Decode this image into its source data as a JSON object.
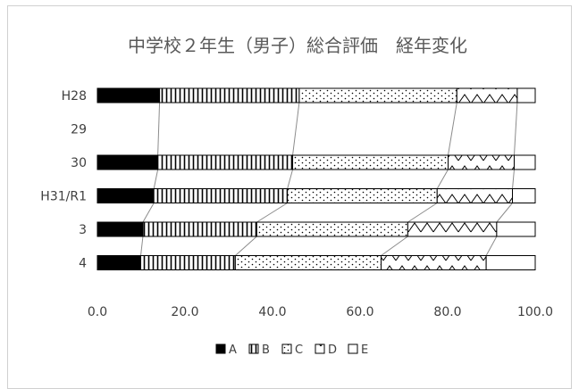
{
  "chart_data": {
    "type": "bar",
    "orientation": "horizontal",
    "stacked": true,
    "title": "中学校２年生（男子）総合評価　経年変化",
    "categories": [
      "H28",
      "29",
      "30",
      "H31/R1",
      "3",
      "4"
    ],
    "x_ticks": [
      "0.0",
      "20.0",
      "40.0",
      "60.0",
      "80.0",
      "100.0"
    ],
    "xlim": [
      0,
      100
    ],
    "grid": false,
    "legend_position": "bottom",
    "series_connectors": true,
    "series": [
      {
        "name": "A",
        "pattern": "solid",
        "values": [
          14.2,
          null,
          13.8,
          12.9,
          10.4,
          9.9
        ]
      },
      {
        "name": "B",
        "pattern": "vertical-lines",
        "values": [
          31.9,
          null,
          30.8,
          30.5,
          26.0,
          21.6
        ]
      },
      {
        "name": "C",
        "pattern": "dots",
        "values": [
          36.0,
          null,
          35.5,
          34.2,
          34.5,
          33.3
        ]
      },
      {
        "name": "D",
        "pattern": "waves",
        "values": [
          13.8,
          null,
          15.1,
          17.2,
          20.3,
          24.0
        ]
      },
      {
        "name": "E",
        "pattern": "empty",
        "values": [
          4.1,
          null,
          4.8,
          5.2,
          8.8,
          11.2
        ]
      }
    ]
  }
}
